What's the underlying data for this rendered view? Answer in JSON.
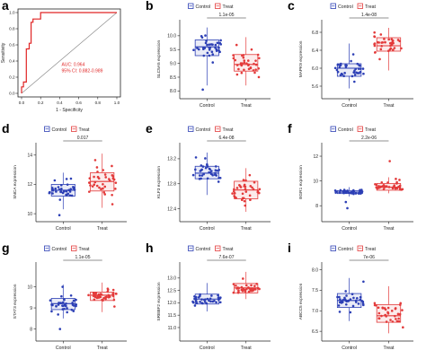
{
  "colors": {
    "control": "#2c3fb5",
    "treat": "#e33a3a",
    "roc": "#e02424",
    "axis": "#444444"
  },
  "chart_data": [
    {
      "type": "line",
      "letter": "a",
      "xlabel": "1 - Specificity",
      "ylabel": "Sensitivity",
      "xlim": [
        0,
        1
      ],
      "ylim": [
        0,
        1
      ],
      "xticks": [
        "0.0",
        "0.2",
        "0.4",
        "0.6",
        "0.8",
        "1.0"
      ],
      "yticks": [
        "0.0",
        "0.2",
        "0.4",
        "0.6",
        "0.8",
        "1.0"
      ],
      "annotations": [
        "AUC: 0.964",
        "95% CI: 0.882-0.989"
      ],
      "series": [
        {
          "x": [
            0,
            0,
            0.02,
            0.02,
            0.05,
            0.05,
            0.08,
            0.08,
            0.1,
            0.1,
            0.12,
            0.12,
            0.2,
            0.2,
            0.4,
            1.0
          ],
          "y": [
            0,
            0.08,
            0.08,
            0.14,
            0.14,
            0.55,
            0.55,
            0.62,
            0.62,
            0.88,
            0.88,
            0.92,
            0.92,
            1.0,
            1.0,
            1.0
          ]
        }
      ],
      "diagonal": true
    },
    {
      "type": "box",
      "letter": "b",
      "ylabel": "SLC5A5 expression",
      "ylim": [
        7.85,
        10.45
      ],
      "yticks": [
        "8.0",
        "8.5",
        "9.0",
        "9.5",
        "10.0"
      ],
      "pvalue": "1.1e-05",
      "categories": [
        "Control",
        "Treat"
      ],
      "legend": [
        "Control",
        "Treat"
      ],
      "boxes": [
        {
          "name": "Control",
          "min": 8.2,
          "q1": 9.28,
          "median": 9.6,
          "q3": 9.85,
          "max": 10.3,
          "outliers": [
            8.05
          ]
        },
        {
          "name": "Treat",
          "min": 8.2,
          "q1": 8.72,
          "median": 8.96,
          "q3": 9.32,
          "max": 9.95,
          "outliers": []
        }
      ]
    },
    {
      "type": "box",
      "letter": "c",
      "ylabel": "MAPK9 expression",
      "ylim": [
        5.4,
        7.0
      ],
      "yticks": [
        "5.6",
        "6.0",
        "6.4",
        "6.8"
      ],
      "pvalue": "1.4e-08",
      "categories": [
        "Control",
        "Treat"
      ],
      "legend": [
        "Control",
        "Treat"
      ],
      "boxes": [
        {
          "name": "Control",
          "min": 5.55,
          "q1": 5.82,
          "median": 6.0,
          "q3": 6.1,
          "max": 6.55,
          "outliers": []
        },
        {
          "name": "Treat",
          "min": 5.95,
          "q1": 6.38,
          "median": 6.5,
          "q3": 6.68,
          "max": 6.9,
          "outliers": []
        }
      ]
    },
    {
      "type": "box",
      "letter": "d",
      "ylabel": "SNCA expression",
      "ylim": [
        9.7,
        14.6
      ],
      "yticks": [
        "10",
        "12",
        "14"
      ],
      "pvalue": "0.017",
      "categories": [
        "Control",
        "Treat"
      ],
      "legend": [
        "Control",
        "Treat"
      ],
      "boxes": [
        {
          "name": "Control",
          "min": 10.3,
          "q1": 11.2,
          "median": 11.6,
          "q3": 12.0,
          "max": 12.8,
          "outliers": [
            9.9
          ]
        },
        {
          "name": "Treat",
          "min": 10.4,
          "q1": 11.55,
          "median": 12.2,
          "q3": 12.8,
          "max": 14.1,
          "outliers": []
        }
      ]
    },
    {
      "type": "box",
      "letter": "e",
      "ylabel": "KLF3 expression",
      "ylim": [
        12.25,
        13.4
      ],
      "yticks": [
        "12.4",
        "12.8",
        "13.2"
      ],
      "pvalue": "6.4e-08",
      "categories": [
        "Control",
        "Treat"
      ],
      "legend": [
        "Control",
        "Treat"
      ],
      "boxes": [
        {
          "name": "Control",
          "min": 12.62,
          "q1": 12.88,
          "median": 12.97,
          "q3": 13.08,
          "max": 13.3,
          "outliers": []
        },
        {
          "name": "Treat",
          "min": 12.35,
          "q1": 12.56,
          "median": 12.7,
          "q3": 12.84,
          "max": 13.05,
          "outliers": []
        }
      ]
    },
    {
      "type": "box",
      "letter": "f",
      "ylabel": "EGR1 expression",
      "ylim": [
        7.0,
        12.8
      ],
      "yticks": [
        "8",
        "10",
        "12"
      ],
      "pvalue": "2.2e-06",
      "categories": [
        "Control",
        "Treat"
      ],
      "legend": [
        "Control",
        "Treat"
      ],
      "boxes": [
        {
          "name": "Control",
          "min": 8.75,
          "q1": 8.98,
          "median": 9.1,
          "q3": 9.22,
          "max": 9.5,
          "outliers": [
            8.3,
            7.8
          ]
        },
        {
          "name": "Treat",
          "min": 9.0,
          "q1": 9.25,
          "median": 9.5,
          "q3": 9.8,
          "max": 10.3,
          "outliers": [
            11.6
          ]
        }
      ]
    },
    {
      "type": "box",
      "letter": "g",
      "ylabel": "STAT3 expression",
      "ylim": [
        7.6,
        11.0
      ],
      "yticks": [
        "8",
        "9",
        "10"
      ],
      "pvalue": "1.1e-05",
      "categories": [
        "Control",
        "Treat"
      ],
      "legend": [
        "Control",
        "Treat"
      ],
      "boxes": [
        {
          "name": "Control",
          "min": 8.5,
          "q1": 8.92,
          "median": 9.2,
          "q3": 9.45,
          "max": 10.1,
          "outliers": [
            8.0
          ]
        },
        {
          "name": "Treat",
          "min": 8.8,
          "q1": 9.35,
          "median": 9.6,
          "q3": 9.75,
          "max": 10.2,
          "outliers": []
        }
      ]
    },
    {
      "type": "box",
      "letter": "h",
      "ylabel": "SREBF2 expression",
      "ylim": [
        10.6,
        13.5
      ],
      "yticks": [
        "11.0",
        "11.5",
        "12.0",
        "12.5",
        "13.0"
      ],
      "pvalue": "7.6e-07",
      "categories": [
        "Control",
        "Treat"
      ],
      "legend": [
        "Control",
        "Treat"
      ],
      "boxes": [
        {
          "name": "Control",
          "min": 11.65,
          "q1": 11.95,
          "median": 12.15,
          "q3": 12.35,
          "max": 12.8,
          "outliers": []
        },
        {
          "name": "Treat",
          "min": 12.15,
          "q1": 12.4,
          "median": 12.6,
          "q3": 12.78,
          "max": 13.25,
          "outliers": []
        }
      ]
    },
    {
      "type": "box",
      "letter": "i",
      "ylabel": "ABCC5 expression",
      "ylim": [
        6.35,
        8.1
      ],
      "yticks": [
        "6.5",
        "7.0",
        "7.5",
        "8.0"
      ],
      "pvalue": "7e-06",
      "categories": [
        "Control",
        "Treat"
      ],
      "legend": [
        "Control",
        "Treat"
      ],
      "boxes": [
        {
          "name": "Control",
          "min": 6.75,
          "q1": 7.08,
          "median": 7.25,
          "q3": 7.42,
          "max": 7.8,
          "outliers": []
        },
        {
          "name": "Treat",
          "min": 6.45,
          "q1": 6.72,
          "median": 6.88,
          "q3": 7.15,
          "max": 7.6,
          "outliers": []
        }
      ]
    }
  ]
}
